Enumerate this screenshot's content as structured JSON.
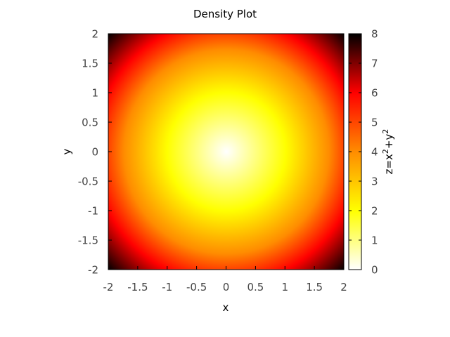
{
  "chart_data": {
    "type": "heatmap",
    "title": "Density Plot",
    "xlabel": "x",
    "ylabel": "y",
    "function": "z = x^2 + y^2",
    "xlim": [
      -2,
      2
    ],
    "ylim": [
      -2,
      2
    ],
    "x_ticks": [
      "-2",
      "-1.5",
      "-1",
      "-0.5",
      "0",
      "0.5",
      "1",
      "1.5",
      "2"
    ],
    "y_ticks": [
      "-2",
      "-1.5",
      "-1",
      "-0.5",
      "0",
      "0.5",
      "1",
      "1.5",
      "2"
    ],
    "colorbar": {
      "label_base": "z=x",
      "label_exp1": "2",
      "label_mid": "+y",
      "label_exp2": "2",
      "range": [
        0,
        8
      ],
      "ticks": [
        "0",
        "1",
        "2",
        "3",
        "4",
        "5",
        "6",
        "7",
        "8"
      ],
      "colormap": [
        "#ffffff",
        "#ffff00",
        "#ff8c00",
        "#ff0000",
        "#000000"
      ]
    }
  }
}
